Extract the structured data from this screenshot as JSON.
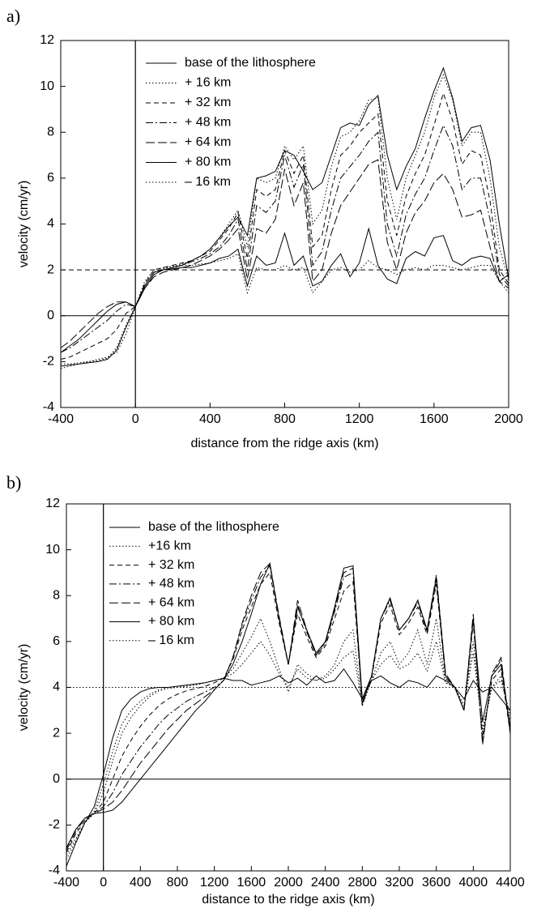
{
  "chart_data": [
    {
      "type": "line",
      "panel_label": "a)",
      "x_label": "distance from the ridge axis (km)",
      "y_label": "velocity (cm/yr)",
      "xlim": [
        -400,
        2000
      ],
      "ylim": [
        -4,
        12
      ],
      "xticks": [
        -400,
        0,
        400,
        800,
        1200,
        1600,
        2000
      ],
      "yticks": [
        -4,
        -2,
        0,
        2,
        4,
        6,
        8,
        10,
        12
      ],
      "legend": "upper left",
      "reference_line": {
        "y": 2,
        "dash": "dashed"
      },
      "x": [
        -400,
        -350,
        -300,
        -250,
        -200,
        -150,
        -100,
        -50,
        0,
        50,
        100,
        150,
        200,
        250,
        300,
        350,
        400,
        450,
        500,
        550,
        600,
        650,
        700,
        750,
        800,
        850,
        900,
        950,
        1000,
        1050,
        1100,
        1150,
        1200,
        1250,
        1300,
        1350,
        1400,
        1450,
        1500,
        1550,
        1600,
        1650,
        1700,
        1750,
        1800,
        1850,
        1900,
        1950,
        2000
      ],
      "series": [
        {
          "name": "base of the lithosphere",
          "color": "#000000",
          "dash": "solid",
          "values": [
            -2.2,
            -2.15,
            -2.1,
            -2.05,
            -2.0,
            -1.9,
            -1.5,
            -0.5,
            0.4,
            1.2,
            1.8,
            2.0,
            2.1,
            2.2,
            2.4,
            2.6,
            2.9,
            3.4,
            3.9,
            4.3,
            3.5,
            6.0,
            6.1,
            6.3,
            7.2,
            7.0,
            6.3,
            5.5,
            5.8,
            7.0,
            8.2,
            8.4,
            8.3,
            9.2,
            9.6,
            7.0,
            5.5,
            6.5,
            7.3,
            8.6,
            9.8,
            10.8,
            9.5,
            7.6,
            8.2,
            8.3,
            6.8,
            4.0,
            1.6
          ]
        },
        {
          "name": "+ 16 km",
          "color": "#000000",
          "dash": "dotted",
          "values": [
            -2.1,
            -2.1,
            -2.05,
            -2.0,
            -1.95,
            -1.85,
            -1.4,
            -0.4,
            0.4,
            1.3,
            1.9,
            2.05,
            2.15,
            2.25,
            2.4,
            2.6,
            2.9,
            3.4,
            4.0,
            4.6,
            3.0,
            6.0,
            5.8,
            6.0,
            7.4,
            6.8,
            7.4,
            4.0,
            4.6,
            6.5,
            7.8,
            8.0,
            8.5,
            9.4,
            9.5,
            6.0,
            4.2,
            6.0,
            7.0,
            8.0,
            9.5,
            10.5,
            9.4,
            7.4,
            8.0,
            8.0,
            6.0,
            3.0,
            1.5
          ]
        },
        {
          "name": "+ 32 km",
          "color": "#000000",
          "dash": "dashed",
          "values": [
            -1.9,
            -1.8,
            -1.6,
            -1.4,
            -1.2,
            -1.0,
            -0.6,
            0.1,
            0.4,
            1.4,
            2.0,
            2.1,
            2.2,
            2.3,
            2.4,
            2.6,
            2.8,
            3.3,
            3.8,
            4.5,
            2.5,
            5.5,
            5.2,
            5.5,
            7.2,
            6.2,
            7.0,
            3.0,
            3.5,
            5.5,
            7.0,
            7.4,
            8.0,
            8.4,
            8.8,
            5.0,
            3.5,
            5.2,
            6.2,
            7.0,
            8.3,
            9.7,
            8.5,
            6.6,
            7.2,
            7.0,
            5.0,
            2.0,
            1.4
          ]
        },
        {
          "name": "+ 48 km",
          "color": "#000000",
          "dash": "dashdot",
          "values": [
            -1.6,
            -1.4,
            -1.1,
            -0.8,
            -0.5,
            -0.2,
            0.2,
            0.5,
            0.4,
            1.3,
            1.9,
            2.0,
            2.1,
            2.2,
            2.35,
            2.5,
            2.7,
            3.0,
            3.5,
            4.2,
            2.0,
            4.8,
            4.5,
            5.0,
            7.0,
            5.6,
            6.6,
            2.2,
            2.8,
            4.6,
            6.0,
            6.5,
            7.0,
            7.6,
            8.0,
            4.0,
            2.6,
            4.4,
            5.3,
            6.0,
            7.2,
            8.3,
            7.4,
            5.5,
            6.0,
            6.0,
            4.2,
            1.8,
            1.3
          ]
        },
        {
          "name": "+ 64 km",
          "color": "#000000",
          "dash": "longdash",
          "values": [
            -1.4,
            -1.1,
            -0.7,
            -0.3,
            0.1,
            0.4,
            0.6,
            0.6,
            0.4,
            1.2,
            1.7,
            1.9,
            2.0,
            2.1,
            2.2,
            2.4,
            2.6,
            2.9,
            3.3,
            3.8,
            1.6,
            3.8,
            3.6,
            4.2,
            6.4,
            4.8,
            5.8,
            1.5,
            2.0,
            3.6,
            4.8,
            5.4,
            6.0,
            6.6,
            6.8,
            3.2,
            2.0,
            3.6,
            4.5,
            5.0,
            5.8,
            6.2,
            5.5,
            4.3,
            4.4,
            4.6,
            3.0,
            1.5,
            1.2
          ]
        },
        {
          "name": "+ 80 km",
          "color": "#000000",
          "dash": "solid",
          "values": [
            -1.6,
            -1.3,
            -1.0,
            -0.6,
            -0.2,
            0.2,
            0.5,
            0.6,
            0.4,
            1.3,
            1.9,
            2.0,
            2.05,
            2.1,
            2.1,
            2.2,
            2.3,
            2.5,
            2.6,
            2.9,
            1.3,
            2.6,
            2.2,
            2.3,
            3.6,
            2.2,
            2.6,
            1.3,
            1.5,
            2.2,
            2.7,
            1.7,
            2.3,
            3.8,
            2.2,
            1.6,
            1.4,
            2.5,
            2.8,
            2.6,
            3.4,
            3.5,
            2.4,
            2.2,
            2.5,
            2.6,
            2.5,
            1.5,
            1.8
          ]
        },
        {
          "name": "– 16 km",
          "color": "#000000",
          "dash": "dotted",
          "values": [
            -2.3,
            -2.2,
            -2.1,
            -2.0,
            -1.9,
            -1.8,
            -1.6,
            -0.8,
            0.4,
            1.5,
            2.0,
            2.1,
            2.15,
            2.2,
            2.2,
            2.25,
            2.3,
            2.4,
            2.5,
            2.7,
            1.0,
            2.1,
            2.0,
            2.0,
            2.2,
            2.0,
            2.1,
            1.0,
            1.5,
            2.0,
            2.1,
            1.9,
            2.0,
            2.4,
            2.1,
            2.0,
            1.8,
            2.0,
            2.1,
            2.0,
            2.2,
            2.2,
            2.1,
            2.0,
            2.1,
            2.2,
            2.2,
            1.5,
            1.0
          ]
        }
      ]
    },
    {
      "type": "line",
      "panel_label": "b)",
      "x_label": "distance to the ridge axis (km)",
      "y_label": "velocity (cm/yr)",
      "xlim": [
        -400,
        4400
      ],
      "ylim": [
        -4,
        12
      ],
      "xticks": [
        -400,
        0,
        400,
        800,
        1200,
        1600,
        2000,
        2400,
        2800,
        3200,
        3600,
        4000,
        4400
      ],
      "yticks": [
        -4,
        -2,
        0,
        2,
        4,
        6,
        8,
        10,
        12
      ],
      "legend": "upper left",
      "reference_line": {
        "y": 4,
        "dash": "dotted"
      },
      "x": [
        -400,
        -300,
        -200,
        -100,
        0,
        100,
        200,
        300,
        400,
        500,
        600,
        700,
        800,
        900,
        1000,
        1100,
        1200,
        1300,
        1400,
        1500,
        1600,
        1700,
        1800,
        1900,
        2000,
        2100,
        2200,
        2300,
        2400,
        2500,
        2600,
        2700,
        2800,
        2900,
        3000,
        3100,
        3200,
        3300,
        3400,
        3500,
        3600,
        3700,
        3800,
        3900,
        4000,
        4100,
        4200,
        4300,
        4400
      ],
      "series": [
        {
          "name": "base of the lithosphere",
          "color": "#000000",
          "dash": "solid",
          "values": [
            -3.0,
            -2.2,
            -1.7,
            -1.5,
            -1.45,
            -1.35,
            -1.0,
            -0.5,
            0.0,
            0.5,
            1.0,
            1.5,
            2.0,
            2.5,
            3.0,
            3.4,
            3.9,
            4.3,
            5.0,
            6.0,
            7.2,
            8.5,
            9.4,
            7.0,
            5.0,
            7.5,
            6.5,
            5.5,
            6.0,
            7.5,
            9.2,
            9.3,
            3.5,
            4.5,
            7.0,
            7.9,
            6.5,
            7.0,
            7.8,
            6.5,
            8.8,
            4.5,
            4.0,
            3.0,
            7.0,
            2.5,
            4.5,
            5.0,
            2.2
          ]
        },
        {
          "name": "+16 km",
          "color": "#000000",
          "dash": "dotted",
          "values": [
            -3.3,
            -2.6,
            -1.9,
            -1.5,
            -0.6,
            0.8,
            2.0,
            2.7,
            3.2,
            3.6,
            3.85,
            3.95,
            4.0,
            4.05,
            4.1,
            4.2,
            4.3,
            4.4,
            4.8,
            5.5,
            6.2,
            7.0,
            6.0,
            4.8,
            3.8,
            5.0,
            4.6,
            4.3,
            4.5,
            5.0,
            6.0,
            6.5,
            3.2,
            4.3,
            5.5,
            6.0,
            5.0,
            5.5,
            6.5,
            5.0,
            7.0,
            4.2,
            4.0,
            3.2,
            6.0,
            2.0,
            4.0,
            4.5,
            2.5
          ]
        },
        {
          "name": "+ 32 km",
          "color": "#000000",
          "dash": "dashed",
          "values": [
            -3.2,
            -2.4,
            -1.8,
            -1.5,
            -1.0,
            0.0,
            1.0,
            1.7,
            2.3,
            2.8,
            3.2,
            3.5,
            3.7,
            3.85,
            3.95,
            4.05,
            4.2,
            4.4,
            5.2,
            6.5,
            7.5,
            8.5,
            9.0,
            6.8,
            5.0,
            7.2,
            6.2,
            5.3,
            5.8,
            7.0,
            8.2,
            8.6,
            3.4,
            4.4,
            6.8,
            7.6,
            6.3,
            6.8,
            7.5,
            6.3,
            8.5,
            4.4,
            4.0,
            3.0,
            6.8,
            1.8,
            4.3,
            4.8,
            2.0
          ]
        },
        {
          "name": "+ 48 km",
          "color": "#000000",
          "dash": "dashdot",
          "values": [
            -3.1,
            -2.3,
            -1.7,
            -1.5,
            -1.2,
            -0.6,
            0.2,
            0.8,
            1.4,
            1.9,
            2.4,
            2.8,
            3.1,
            3.4,
            3.6,
            3.8,
            4.0,
            4.3,
            5.3,
            6.7,
            7.8,
            8.8,
            9.3,
            7.0,
            5.0,
            7.6,
            6.4,
            5.4,
            5.9,
            7.3,
            8.8,
            9.0,
            3.3,
            4.5,
            7.0,
            7.8,
            6.5,
            7.0,
            7.7,
            6.4,
            8.7,
            4.5,
            4.0,
            3.0,
            7.0,
            1.6,
            4.5,
            5.2,
            2.0
          ]
        },
        {
          "name": "+ 64 km",
          "color": "#000000",
          "dash": "longdash",
          "values": [
            -3.0,
            -2.2,
            -1.7,
            -1.5,
            -1.3,
            -1.0,
            -0.5,
            0.1,
            0.7,
            1.2,
            1.7,
            2.2,
            2.6,
            3.0,
            3.3,
            3.6,
            3.9,
            4.3,
            5.3,
            6.8,
            8.0,
            9.0,
            9.4,
            7.1,
            5.0,
            7.8,
            6.5,
            5.4,
            6.0,
            7.4,
            9.0,
            9.2,
            3.2,
            4.5,
            7.0,
            7.9,
            6.5,
            7.0,
            7.8,
            6.5,
            8.9,
            4.6,
            4.0,
            3.0,
            7.2,
            1.5,
            4.6,
            5.3,
            2.0
          ]
        },
        {
          "name": "+ 80 km",
          "color": "#000000",
          "dash": "solid",
          "values": [
            -3.8,
            -2.8,
            -1.9,
            -1.2,
            0.2,
            1.8,
            3.0,
            3.5,
            3.8,
            3.95,
            4.0,
            4.0,
            4.05,
            4.1,
            4.15,
            4.2,
            4.3,
            4.4,
            4.3,
            4.3,
            4.1,
            4.2,
            4.3,
            4.5,
            4.2,
            4.4,
            4.1,
            4.5,
            4.2,
            4.3,
            4.8,
            4.2,
            3.5,
            4.3,
            4.5,
            4.2,
            4.0,
            4.3,
            4.2,
            4.0,
            4.5,
            4.3,
            4.0,
            3.5,
            4.3,
            3.8,
            4.0,
            3.5,
            3.0
          ]
        },
        {
          "name": "– 16 km",
          "color": "#000000",
          "dash": "dotted",
          "values": [
            -3.5,
            -2.7,
            -1.9,
            -1.4,
            -0.2,
            1.2,
            2.4,
            3.0,
            3.4,
            3.7,
            3.9,
            4.0,
            4.05,
            4.1,
            4.15,
            4.2,
            4.3,
            4.4,
            4.6,
            5.0,
            5.5,
            6.0,
            5.4,
            4.6,
            4.0,
            4.8,
            4.4,
            4.3,
            4.4,
            4.8,
            5.3,
            5.6,
            3.3,
            4.3,
            5.0,
            5.4,
            4.8,
            5.0,
            5.5,
            4.7,
            6.0,
            4.2,
            4.0,
            3.2,
            5.5,
            2.2,
            4.0,
            4.3,
            2.8
          ]
        }
      ]
    }
  ]
}
